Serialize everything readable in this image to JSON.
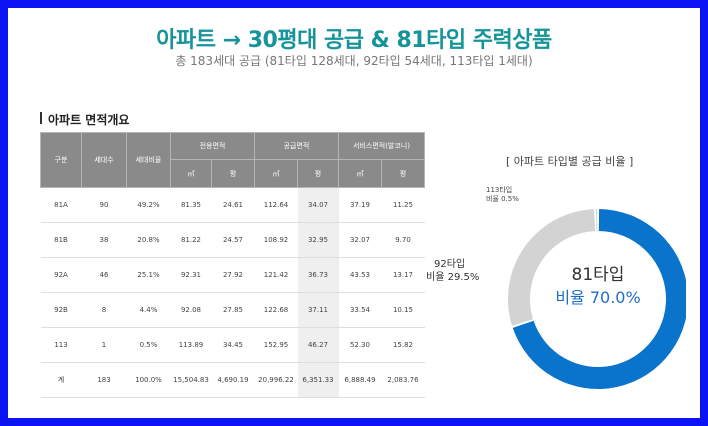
{
  "header": {
    "title": "아파트 → 30평대 공급 & 81타입 주력상품",
    "subtitle": "총 183세대 공급 (81타입 128세대, 92타입 54세대, 113타입 1세대)"
  },
  "section": {
    "title": "아파트 면적개요"
  },
  "table": {
    "h": {
      "type": "구분",
      "units": "세대수",
      "ratio": "세대비율",
      "exclusive": "전용면적",
      "supply": "공급면적",
      "service": "서비스면적(발코니)",
      "sqm": "㎡",
      "pyeong": "평"
    },
    "rows": [
      [
        "81A",
        "90",
        "49.2%",
        "81.35",
        "24.61",
        "112.64",
        "34.07",
        "37.19",
        "11.25"
      ],
      [
        "81B",
        "38",
        "20.8%",
        "81.22",
        "24.57",
        "108.92",
        "32.95",
        "32.07",
        "9.70"
      ],
      [
        "92A",
        "46",
        "25.1%",
        "92.31",
        "27.92",
        "121.42",
        "36.73",
        "43.53",
        "13.17"
      ],
      [
        "92B",
        "8",
        "4.4%",
        "92.08",
        "27.85",
        "122.68",
        "37.11",
        "33.54",
        "10.15"
      ],
      [
        "113",
        "1",
        "0.5%",
        "113.89",
        "34.45",
        "152.95",
        "46.27",
        "52.30",
        "15.82"
      ],
      [
        "계",
        "183",
        "100.0%",
        "15,504.83",
        "4,690.19",
        "20,996.22",
        "6,351.33",
        "6,888.49",
        "2,083.76"
      ]
    ]
  },
  "pie": {
    "title": "[ 아파트 타입별 공급 비율 ]",
    "center_type": "81타입",
    "center_ratio": "비율 70.0%",
    "label_92_type": "92타입",
    "label_92_ratio": "비율 29.5%",
    "label_113_type": "113타입",
    "label_113_ratio": "비율 0.5%",
    "colors": {
      "t81": "#0a73cc",
      "t92": "#d3d3d3",
      "t113": "#bcbcbc"
    }
  },
  "chart_data": {
    "type": "pie",
    "title": "[ 아파트 타입별 공급 비율 ]",
    "categories": [
      "81타입",
      "92타입",
      "113타입"
    ],
    "values": [
      70.0,
      29.5,
      0.5
    ]
  }
}
